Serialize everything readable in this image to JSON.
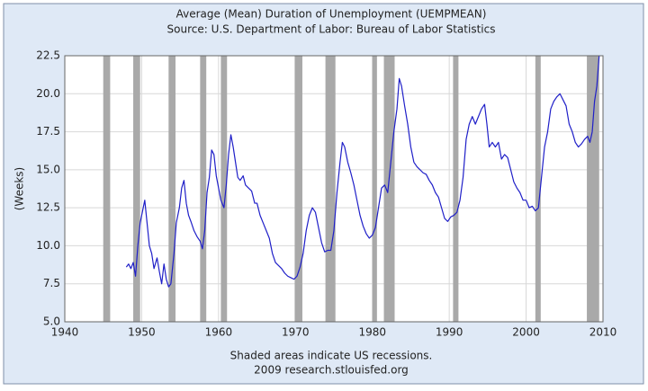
{
  "chart_data": {
    "type": "line",
    "title": "Average (Mean) Duration of Unemployment (UEMPMEAN)",
    "subtitle": "Source: U.S. Department of Labor: Bureau of Labor Statistics",
    "y_label": "(Weeks)",
    "notes": [
      "Shaded areas indicate US recessions.",
      "2009 research.stlouisfed.org"
    ],
    "xlim": [
      1940,
      2010
    ],
    "xticks": [
      1940,
      1950,
      1960,
      1970,
      1980,
      1990,
      2000,
      2010
    ],
    "ylim": [
      5,
      22.5
    ],
    "yticks": [
      {
        "value": 5,
        "label": "5.0"
      },
      7.5,
      {
        "value": 10,
        "label": "10.0"
      },
      12.5,
      {
        "value": 15,
        "label": "15.0"
      },
      17.5,
      {
        "value": 20,
        "label": "20.0"
      },
      22.5
    ],
    "grid": true,
    "recession_color": "#a9a9a9",
    "recessions": [
      [
        1945.0,
        1945.9
      ],
      [
        1948.9,
        1949.8
      ],
      [
        1953.5,
        1954.4
      ],
      [
        1957.6,
        1958.4
      ],
      [
        1960.3,
        1961.1
      ],
      [
        1969.9,
        1970.9
      ],
      [
        1973.9,
        1975.2
      ],
      [
        1980.0,
        1980.6
      ],
      [
        1981.5,
        1982.9
      ],
      [
        1990.5,
        1991.2
      ],
      [
        2001.2,
        2001.9
      ],
      [
        2007.9,
        2009.5
      ]
    ],
    "x": [
      1948.0,
      1948.3,
      1948.6,
      1948.9,
      1949.2,
      1949.5,
      1949.8,
      1950.2,
      1950.4,
      1950.7,
      1951.0,
      1951.3,
      1951.6,
      1952.0,
      1952.3,
      1952.6,
      1952.9,
      1953.2,
      1953.5,
      1953.8,
      1954.2,
      1954.5,
      1954.9,
      1955.2,
      1955.5,
      1955.8,
      1956.1,
      1956.4,
      1956.8,
      1957.2,
      1957.6,
      1957.9,
      1958.2,
      1958.5,
      1958.8,
      1959.1,
      1959.4,
      1959.7,
      1960.0,
      1960.3,
      1960.7,
      1961.0,
      1961.3,
      1961.6,
      1961.9,
      1962.2,
      1962.5,
      1962.8,
      1963.2,
      1963.5,
      1963.9,
      1964.3,
      1964.7,
      1965.0,
      1965.4,
      1965.8,
      1966.2,
      1966.6,
      1967.0,
      1967.4,
      1967.8,
      1968.2,
      1968.6,
      1969.0,
      1969.4,
      1969.8,
      1970.2,
      1970.6,
      1971.0,
      1971.4,
      1971.8,
      1972.2,
      1972.6,
      1973.0,
      1973.4,
      1973.8,
      1974.2,
      1974.6,
      1975.0,
      1975.4,
      1975.8,
      1976.1,
      1976.4,
      1976.8,
      1977.2,
      1977.6,
      1978.0,
      1978.4,
      1978.8,
      1979.2,
      1979.6,
      1980.0,
      1980.4,
      1980.8,
      1981.2,
      1981.6,
      1982.0,
      1982.4,
      1982.8,
      1983.2,
      1983.5,
      1983.8,
      1984.2,
      1984.6,
      1985.0,
      1985.4,
      1985.8,
      1986.2,
      1986.6,
      1987.0,
      1987.4,
      1987.8,
      1988.2,
      1988.6,
      1989.0,
      1989.4,
      1989.8,
      1990.2,
      1990.6,
      1991.0,
      1991.4,
      1991.8,
      1992.2,
      1992.6,
      1993.0,
      1993.4,
      1993.8,
      1994.2,
      1994.6,
      1994.9,
      1995.2,
      1995.6,
      1996.0,
      1996.4,
      1996.8,
      1997.2,
      1997.6,
      1998.0,
      1998.4,
      1998.8,
      1999.2,
      1999.6,
      2000.0,
      2000.4,
      2000.8,
      2001.2,
      2001.6,
      2002.0,
      2002.4,
      2002.8,
      2003.2,
      2003.6,
      2004.0,
      2004.4,
      2004.8,
      2005.2,
      2005.6,
      2006.0,
      2006.4,
      2006.8,
      2007.2,
      2007.6,
      2008.0,
      2008.3,
      2008.6,
      2008.9,
      2009.2,
      2009.5
    ],
    "series": [
      {
        "color": "#1f1fc8",
        "values": [
          8.6,
          8.8,
          8.5,
          8.9,
          8.0,
          10.0,
          11.5,
          12.5,
          13.0,
          11.5,
          10.0,
          9.5,
          8.5,
          9.2,
          8.3,
          7.5,
          8.8,
          7.8,
          7.3,
          7.5,
          9.5,
          11.5,
          12.5,
          13.8,
          14.3,
          12.8,
          12.0,
          11.6,
          11.0,
          10.6,
          10.3,
          9.8,
          11.0,
          13.5,
          14.5,
          16.3,
          16.0,
          14.6,
          13.8,
          13.0,
          12.5,
          14.0,
          16.0,
          17.3,
          16.5,
          15.5,
          14.5,
          14.3,
          14.6,
          14.0,
          13.8,
          13.6,
          12.8,
          12.8,
          12.0,
          11.5,
          11.0,
          10.5,
          9.5,
          8.9,
          8.7,
          8.5,
          8.2,
          8.0,
          7.9,
          7.8,
          8.0,
          8.6,
          9.5,
          11.0,
          12.0,
          12.5,
          12.2,
          11.2,
          10.2,
          9.6,
          9.7,
          9.7,
          11.0,
          13.5,
          15.5,
          16.8,
          16.5,
          15.5,
          14.8,
          14.0,
          13.0,
          12.0,
          11.3,
          10.8,
          10.5,
          10.7,
          11.2,
          12.5,
          13.8,
          14.0,
          13.5,
          15.5,
          17.5,
          19.0,
          21.0,
          20.5,
          19.2,
          18.0,
          16.5,
          15.5,
          15.2,
          15.0,
          14.8,
          14.7,
          14.3,
          14.0,
          13.5,
          13.2,
          12.5,
          11.8,
          11.6,
          11.9,
          12.0,
          12.2,
          13.0,
          14.5,
          17.0,
          18.0,
          18.5,
          18.0,
          18.5,
          19.0,
          19.3,
          18.0,
          16.5,
          16.8,
          16.5,
          16.8,
          15.7,
          16.0,
          15.8,
          15.0,
          14.2,
          13.8,
          13.5,
          13.0,
          13.0,
          12.5,
          12.6,
          12.3,
          12.5,
          14.5,
          16.5,
          17.5,
          19.0,
          19.5,
          19.8,
          20.0,
          19.6,
          19.2,
          18.0,
          17.5,
          16.8,
          16.5,
          16.7,
          17.0,
          17.2,
          16.8,
          17.5,
          19.5,
          20.5,
          22.5
        ]
      }
    ]
  }
}
